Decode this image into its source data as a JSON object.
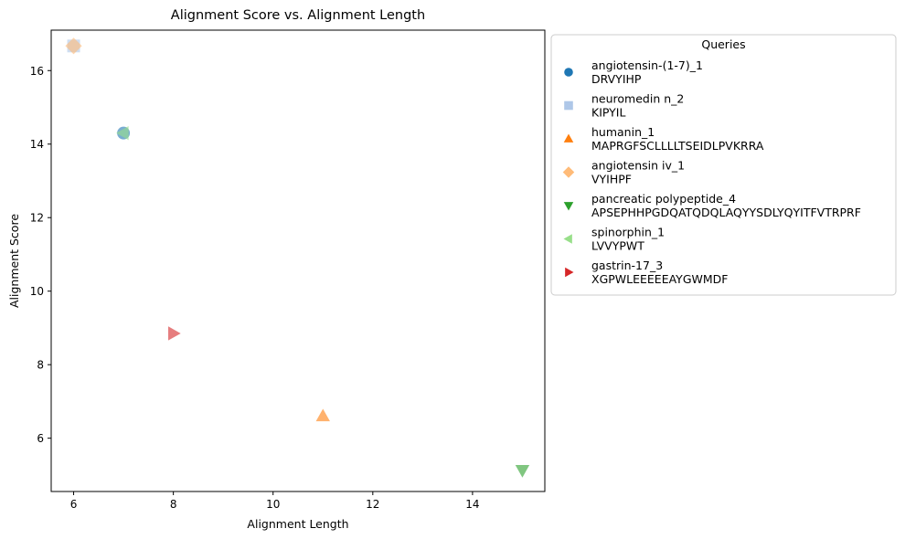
{
  "chart_data": {
    "type": "scatter",
    "title": "Alignment Score vs. Alignment Length",
    "xlabel": "Alignment Length",
    "ylabel": "Alignment Score",
    "xlim": [
      5.55,
      15.45
    ],
    "ylim": [
      4.55,
      17.1
    ],
    "xticks": [
      6,
      8,
      10,
      12,
      14
    ],
    "yticks": [
      6,
      8,
      10,
      12,
      14,
      16
    ],
    "grid": false,
    "legend": {
      "title": "Queries",
      "placement": "outside-right",
      "entries": [
        {
          "name": "angiotensin-(1-7)_1",
          "sequence": "DRVYIHP",
          "marker": "circle",
          "color": "#1f77b4"
        },
        {
          "name": "neuromedin n_2",
          "sequence": "KIPYIL",
          "marker": "square",
          "color": "#aec7e8"
        },
        {
          "name": "humanin_1",
          "sequence": "MAPRGFSCLLLLTSEIDLPVKRRA",
          "marker": "triangle-up",
          "color": "#ff7f0e"
        },
        {
          "name": "angiotensin iv_1",
          "sequence": "VYIHPF",
          "marker": "diamond",
          "color": "#ffbb78"
        },
        {
          "name": "pancreatic polypeptide_4",
          "sequence": "APSEPHHPGDQATQDQLAQYYSDLYQYITFVTRPRF",
          "marker": "triangle-down",
          "color": "#2ca02c"
        },
        {
          "name": "spinorphin_1",
          "sequence": "LVVYPWT",
          "marker": "triangle-left",
          "color": "#98df8a"
        },
        {
          "name": "gastrin-17_3",
          "sequence": "XGPWLEEEEEAYGWMDF",
          "marker": "triangle-right",
          "color": "#d62728"
        }
      ]
    },
    "series": [
      {
        "name": "angiotensin-(1-7)_1",
        "marker": "circle",
        "color": "#1f77b4",
        "points": [
          {
            "x": 7,
            "y": 14.3
          }
        ]
      },
      {
        "name": "neuromedin n_2",
        "marker": "square",
        "color": "#aec7e8",
        "points": [
          {
            "x": 6,
            "y": 16.67
          }
        ]
      },
      {
        "name": "humanin_1",
        "marker": "triangle-up",
        "color": "#ff7f0e",
        "points": [
          {
            "x": 11,
            "y": 6.6
          }
        ]
      },
      {
        "name": "angiotensin iv_1",
        "marker": "diamond",
        "color": "#ffbb78",
        "points": [
          {
            "x": 6,
            "y": 16.67
          }
        ]
      },
      {
        "name": "pancreatic polypeptide_4",
        "marker": "triangle-down",
        "color": "#2ca02c",
        "points": [
          {
            "x": 15,
            "y": 5.13
          }
        ]
      },
      {
        "name": "spinorphin_1",
        "marker": "triangle-left",
        "color": "#98df8a",
        "points": [
          {
            "x": 7,
            "y": 14.3
          }
        ]
      },
      {
        "name": "gastrin-17_3",
        "marker": "triangle-right",
        "color": "#d62728",
        "points": [
          {
            "x": 8,
            "y": 8.85
          }
        ]
      }
    ]
  }
}
